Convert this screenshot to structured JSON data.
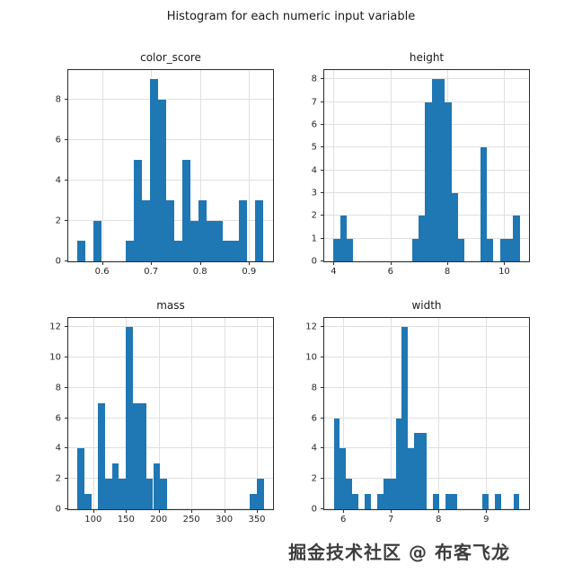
{
  "figure": {
    "title": "Histogram for each numeric input variable",
    "watermark": "掘金技术社区 @ 布客飞龙"
  },
  "colors": {
    "bar": "#1f77b4",
    "grid": "#e0e0e0",
    "spine": "#2b2b2b"
  },
  "chart_data": {
    "type": "bar",
    "layout": "2x2 grid of histograms, grid on, no legend",
    "title": "Histogram for each numeric input variable",
    "subplots": [
      {
        "title": "color_score",
        "xlim": [
          0.531,
          0.949
        ],
        "ylim": [
          0,
          9.45
        ],
        "xticks": [
          0.6,
          0.7,
          0.8,
          0.9
        ],
        "yticks": [
          0,
          2,
          4,
          6,
          8
        ],
        "bins": [
          [
            0.55,
            0.5665,
            1
          ],
          [
            0.583,
            0.5995,
            2
          ],
          [
            0.649,
            0.6655,
            1
          ],
          [
            0.6655,
            0.682,
            5
          ],
          [
            0.682,
            0.6985,
            3
          ],
          [
            0.6985,
            0.715,
            9
          ],
          [
            0.715,
            0.7315,
            8
          ],
          [
            0.7315,
            0.748,
            3
          ],
          [
            0.748,
            0.7645,
            1
          ],
          [
            0.7645,
            0.781,
            5
          ],
          [
            0.781,
            0.7975,
            2
          ],
          [
            0.7975,
            0.814,
            3
          ],
          [
            0.814,
            0.8305,
            2
          ],
          [
            0.8305,
            0.847,
            2
          ],
          [
            0.847,
            0.8635,
            1
          ],
          [
            0.8635,
            0.88,
            1
          ],
          [
            0.88,
            0.8965,
            3
          ],
          [
            0.913,
            0.9295,
            3
          ]
        ]
      },
      {
        "title": "height",
        "xlim": [
          3.67,
          10.87
        ],
        "ylim": [
          0,
          8.4
        ],
        "xticks": [
          4,
          6,
          8,
          10
        ],
        "yticks": [
          0,
          1,
          2,
          3,
          4,
          5,
          6,
          7,
          8
        ],
        "bins": [
          [
            4.0,
            4.23,
            1
          ],
          [
            4.23,
            4.46,
            2
          ],
          [
            4.46,
            4.69,
            1
          ],
          [
            6.76,
            6.99,
            1
          ],
          [
            6.99,
            7.22,
            2
          ],
          [
            7.22,
            7.45,
            7
          ],
          [
            7.45,
            7.68,
            8
          ],
          [
            7.68,
            7.91,
            8
          ],
          [
            7.91,
            8.14,
            7
          ],
          [
            8.14,
            8.37,
            3
          ],
          [
            8.37,
            8.6,
            1
          ],
          [
            9.16,
            9.39,
            5
          ],
          [
            9.39,
            9.62,
            1
          ],
          [
            9.85,
            10.08,
            1
          ],
          [
            10.08,
            10.31,
            1
          ],
          [
            10.31,
            10.54,
            2
          ]
        ]
      },
      {
        "title": "mass",
        "xlim": [
          61.8,
          374.7
        ],
        "ylim": [
          0,
          12.6
        ],
        "xticks": [
          100,
          150,
          200,
          250,
          300,
          350
        ],
        "yticks": [
          0,
          2,
          4,
          6,
          8,
          10,
          12
        ],
        "bins": [
          [
            76,
            86.5,
            4
          ],
          [
            86.5,
            97,
            1
          ],
          [
            107.5,
            118,
            7
          ],
          [
            118,
            128.5,
            2
          ],
          [
            128.5,
            139,
            3
          ],
          [
            139,
            149.5,
            2
          ],
          [
            149.5,
            160,
            12
          ],
          [
            160,
            170.5,
            7
          ],
          [
            170.5,
            181,
            7
          ],
          [
            181,
            191.5,
            2
          ],
          [
            191.5,
            202,
            3
          ],
          [
            202,
            212.5,
            2
          ],
          [
            339.5,
            350,
            1
          ],
          [
            350,
            360.5,
            2
          ]
        ]
      },
      {
        "title": "width",
        "xlim": [
          5.6,
          9.9
        ],
        "ylim": [
          0,
          12.6
        ],
        "xticks": [
          6,
          7,
          8,
          9
        ],
        "yticks": [
          0,
          2,
          4,
          6,
          8,
          10,
          12
        ],
        "bins": [
          [
            5.8,
            5.93,
            6
          ],
          [
            5.93,
            6.06,
            4
          ],
          [
            6.06,
            6.19,
            2
          ],
          [
            6.19,
            6.32,
            1
          ],
          [
            6.45,
            6.58,
            1
          ],
          [
            6.71,
            6.84,
            1
          ],
          [
            6.84,
            6.97,
            2
          ],
          [
            6.97,
            7.1,
            2
          ],
          [
            7.1,
            7.23,
            6
          ],
          [
            7.23,
            7.36,
            12
          ],
          [
            7.36,
            7.49,
            4
          ],
          [
            7.49,
            7.62,
            5
          ],
          [
            7.62,
            7.75,
            5
          ],
          [
            7.88,
            8.01,
            1
          ],
          [
            8.14,
            8.27,
            1
          ],
          [
            8.27,
            8.4,
            1
          ],
          [
            8.92,
            9.05,
            1
          ],
          [
            9.18,
            9.31,
            1
          ],
          [
            9.57,
            9.7,
            1
          ]
        ]
      }
    ]
  }
}
